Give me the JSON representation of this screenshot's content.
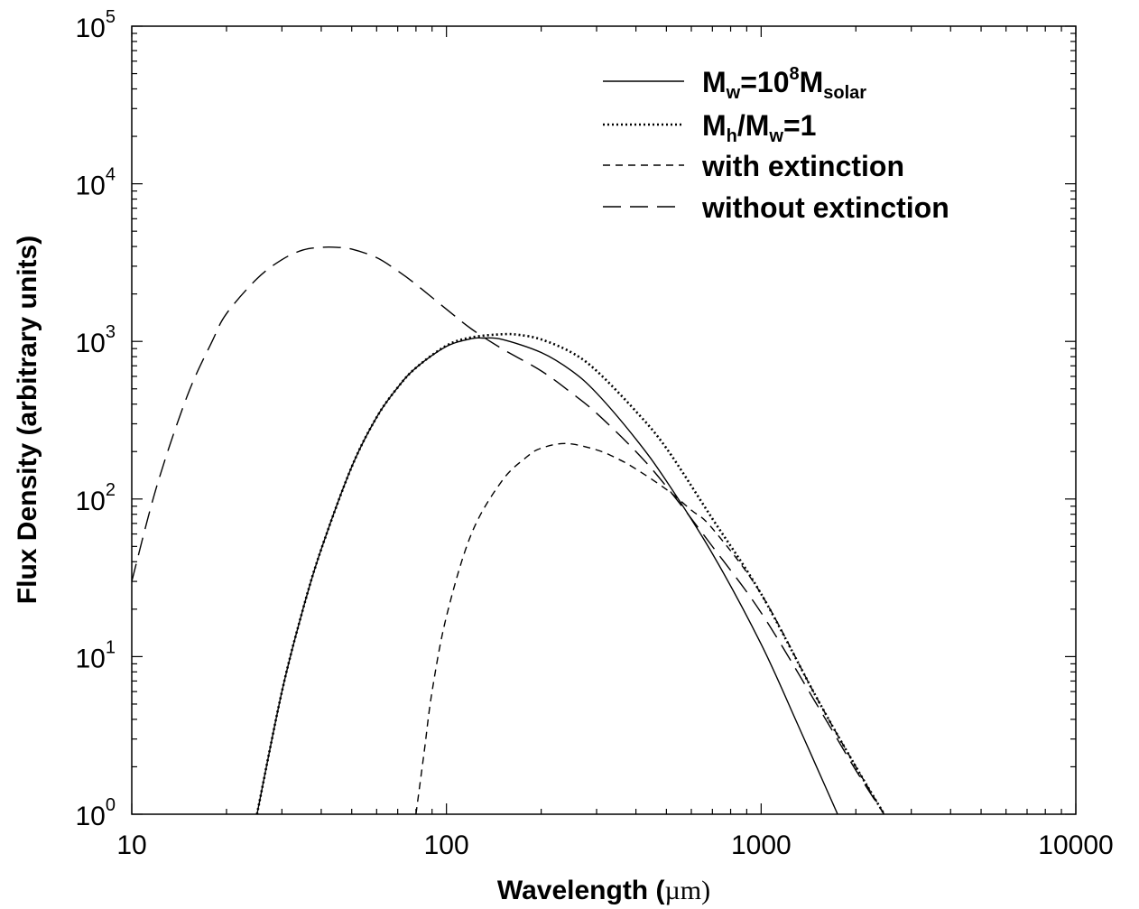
{
  "chart_data": {
    "type": "line",
    "title": "",
    "xlabel": "Wavelength (",
    "xlabel_unit": "µm",
    "xlabel_close": ")",
    "ylabel": "Flux Density (arbitrary units)",
    "x_scale": "log",
    "y_scale": "log",
    "xlim": [
      10,
      10000
    ],
    "ylim": [
      1,
      100000
    ],
    "x_ticks": [
      "10",
      "100",
      "1000",
      "10000"
    ],
    "y_ticks": [
      {
        "base": "10",
        "exp": "0"
      },
      {
        "base": "10",
        "exp": "1"
      },
      {
        "base": "10",
        "exp": "2"
      },
      {
        "base": "10",
        "exp": "3"
      },
      {
        "base": "10",
        "exp": "4"
      },
      {
        "base": "10",
        "exp": "5"
      }
    ],
    "grid": false,
    "legend_position": "top-right",
    "legend": [
      {
        "style": "solid",
        "parts": [
          [
            "M",
            ""
          ],
          [
            "w",
            "sub"
          ],
          [
            "=10",
            ""
          ],
          [
            "8",
            "sup"
          ],
          [
            "M",
            ""
          ],
          [
            "solar",
            "sub"
          ]
        ]
      },
      {
        "style": "dotted",
        "parts": [
          [
            "M",
            ""
          ],
          [
            "h",
            "sub"
          ],
          [
            "/M",
            ""
          ],
          [
            "w",
            "sub"
          ],
          [
            "=1",
            ""
          ]
        ]
      },
      {
        "style": "short-dash",
        "parts": [
          [
            "with extinction",
            ""
          ]
        ]
      },
      {
        "style": "long-dash",
        "parts": [
          [
            "without extinction",
            ""
          ]
        ]
      }
    ],
    "series": [
      {
        "style": "solid",
        "x": [
          25,
          30,
          35,
          40,
          50,
          60,
          70,
          80,
          100,
          120,
          130,
          150,
          200,
          250,
          300,
          400,
          500,
          700,
          1000,
          1300,
          1500,
          1750
        ],
        "y": [
          1,
          6,
          20,
          48,
          160,
          330,
          510,
          680,
          930,
          1040,
          1050,
          1030,
          850,
          650,
          470,
          240,
          130,
          45,
          12,
          3.8,
          2.0,
          1.0
        ]
      },
      {
        "style": "dotted",
        "x": [
          25,
          30,
          35,
          40,
          50,
          60,
          70,
          80,
          100,
          120,
          150,
          170,
          200,
          250,
          300,
          400,
          500,
          700,
          1000,
          1500,
          2000,
          2500
        ],
        "y": [
          1,
          6,
          20,
          48,
          160,
          330,
          510,
          680,
          940,
          1060,
          1110,
          1100,
          1030,
          850,
          650,
          360,
          210,
          75,
          25,
          5.5,
          2.0,
          0.95
        ]
      },
      {
        "style": "short-dash",
        "x": [
          80,
          85,
          90,
          100,
          120,
          150,
          180,
          200,
          240,
          300,
          350,
          400,
          500,
          600,
          700,
          1000,
          1500,
          2000,
          2500
        ],
        "y": [
          1,
          2.5,
          6,
          18,
          60,
          130,
          185,
          210,
          225,
          205,
          180,
          155,
          115,
          85,
          65,
          25,
          5.5,
          2.0,
          0.95
        ]
      },
      {
        "style": "long-dash",
        "x": [
          10,
          12,
          15,
          18,
          20,
          25,
          30,
          35,
          40,
          45,
          50,
          60,
          70,
          80,
          100,
          120,
          150,
          200,
          250,
          300,
          400,
          500,
          700,
          1000,
          1500,
          2000,
          2500
        ],
        "y": [
          30,
          120,
          450,
          1000,
          1500,
          2500,
          3300,
          3800,
          3950,
          3950,
          3850,
          3400,
          2800,
          2300,
          1600,
          1200,
          900,
          650,
          470,
          350,
          200,
          120,
          50,
          19,
          5.0,
          1.9,
          0.95
        ]
      }
    ]
  }
}
